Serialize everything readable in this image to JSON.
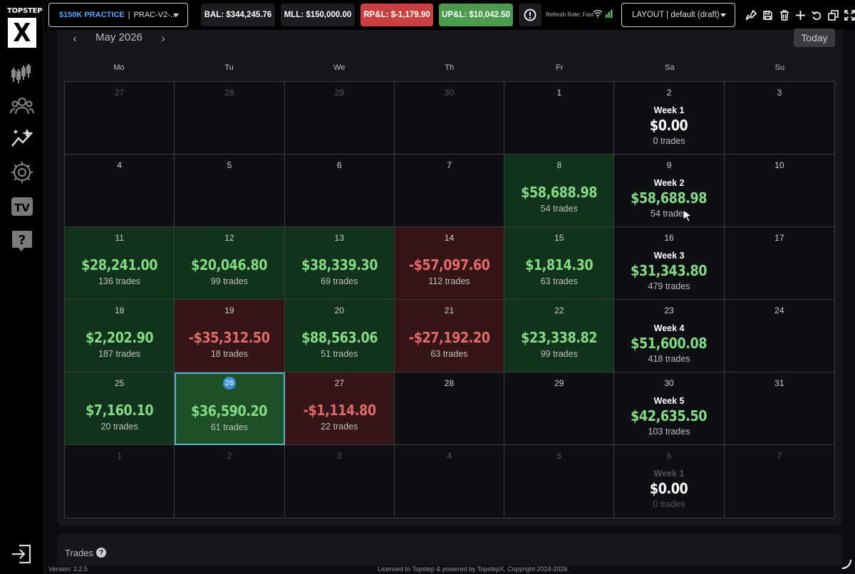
{
  "brand": {
    "logo_text": "TOPSTEP",
    "logo_mark": "X"
  },
  "sidebar": {
    "items": [
      {
        "name": "chart-icon"
      },
      {
        "name": "users-icon"
      },
      {
        "name": "analytics-icon"
      },
      {
        "name": "gear-icon"
      },
      {
        "name": "tv-icon",
        "label": "TV"
      },
      {
        "name": "help-icon",
        "label": "?"
      }
    ]
  },
  "topbar": {
    "account": {
      "plan": "$150K PRACTICE",
      "sep": "|",
      "id": "PRAC-V2-..."
    },
    "bal": "BAL: $344,245.76",
    "mll": "MLL: $150,000.00",
    "rpl": "RP&L: $-1,179.90",
    "upl": "UP&L: $10,042.50",
    "refresh": "Refresh Rate: Fast",
    "layout": "LAYOUT | default (draft)",
    "colors": {
      "red": "#c8403f",
      "green": "#4c9a4e",
      "accent": "#4aa8ff"
    }
  },
  "calendar": {
    "month": "May 2026",
    "today_label": "Today",
    "weekdays": [
      "Mo",
      "Tu",
      "We",
      "Th",
      "Fr",
      "Sa",
      "Su"
    ],
    "weeks": [
      [
        {
          "day": "27",
          "dim": true
        },
        {
          "day": "28",
          "dim": true
        },
        {
          "day": "29",
          "dim": true
        },
        {
          "day": "30",
          "dim": true
        },
        {
          "day": "1"
        },
        {
          "day": "2",
          "week": "Week 1",
          "week_pnl": "$0.00",
          "week_trades": "0 trades"
        },
        {
          "day": "3"
        }
      ],
      [
        {
          "day": "4"
        },
        {
          "day": "5"
        },
        {
          "day": "6"
        },
        {
          "day": "7"
        },
        {
          "day": "8",
          "pnl": "$58,688.98",
          "trades": "54 trades",
          "state": "pos"
        },
        {
          "day": "9",
          "week": "Week 2",
          "week_pnl": "$58,688.98",
          "week_trades": "54 trades"
        },
        {
          "day": "10"
        }
      ],
      [
        {
          "day": "11",
          "pnl": "$28,241.00",
          "trades": "136 trades",
          "state": "pos"
        },
        {
          "day": "12",
          "pnl": "$20,046.80",
          "trades": "99 trades",
          "state": "pos"
        },
        {
          "day": "13",
          "pnl": "$38,339.30",
          "trades": "69 trades",
          "state": "pos"
        },
        {
          "day": "14",
          "pnl": "-$57,097.60",
          "trades": "112 trades",
          "state": "neg"
        },
        {
          "day": "15",
          "pnl": "$1,814.30",
          "trades": "63 trades",
          "state": "pos"
        },
        {
          "day": "16",
          "week": "Week 3",
          "week_pnl": "$31,343.80",
          "week_trades": "479 trades"
        },
        {
          "day": "17"
        }
      ],
      [
        {
          "day": "18",
          "pnl": "$2,202.90",
          "trades": "187 trades",
          "state": "pos"
        },
        {
          "day": "19",
          "pnl": "-$35,312.50",
          "trades": "18 trades",
          "state": "neg"
        },
        {
          "day": "20",
          "pnl": "$88,563.06",
          "trades": "51 trades",
          "state": "pos"
        },
        {
          "day": "21",
          "pnl": "-$27,192.20",
          "trades": "63 trades",
          "state": "neg"
        },
        {
          "day": "22",
          "pnl": "$23,338.82",
          "trades": "99 trades",
          "state": "pos"
        },
        {
          "day": "23",
          "week": "Week 4",
          "week_pnl": "$51,600.08",
          "week_trades": "418 trades"
        },
        {
          "day": "24"
        }
      ],
      [
        {
          "day": "25",
          "pnl": "$7,160.10",
          "trades": "20 trades",
          "state": "pos"
        },
        {
          "day": "26",
          "pnl": "$36,590.20",
          "trades": "61 trades",
          "state": "today"
        },
        {
          "day": "27",
          "pnl": "-$1,114.80",
          "trades": "22 trades",
          "state": "neg"
        },
        {
          "day": "28"
        },
        {
          "day": "29"
        },
        {
          "day": "30",
          "week": "Week 5",
          "week_pnl": "$42,635.50",
          "week_trades": "103 trades"
        },
        {
          "day": "31"
        }
      ],
      [
        {
          "day": "1",
          "dim": true
        },
        {
          "day": "2",
          "dim": true
        },
        {
          "day": "3",
          "dim": true
        },
        {
          "day": "4",
          "dim": true
        },
        {
          "day": "5",
          "dim": true
        },
        {
          "day": "6",
          "dim": true,
          "week": "Week 1",
          "week_pnl": "$0.00",
          "week_trades": "0 trades"
        },
        {
          "day": "7",
          "dim": true
        }
      ]
    ]
  },
  "trades_panel": {
    "title": "Trades",
    "help": "?"
  },
  "footer": {
    "version": "Version: 2.2.5",
    "license": "Licensed to Topstep & powered by TopstepX. Copyright 2024-2026"
  }
}
